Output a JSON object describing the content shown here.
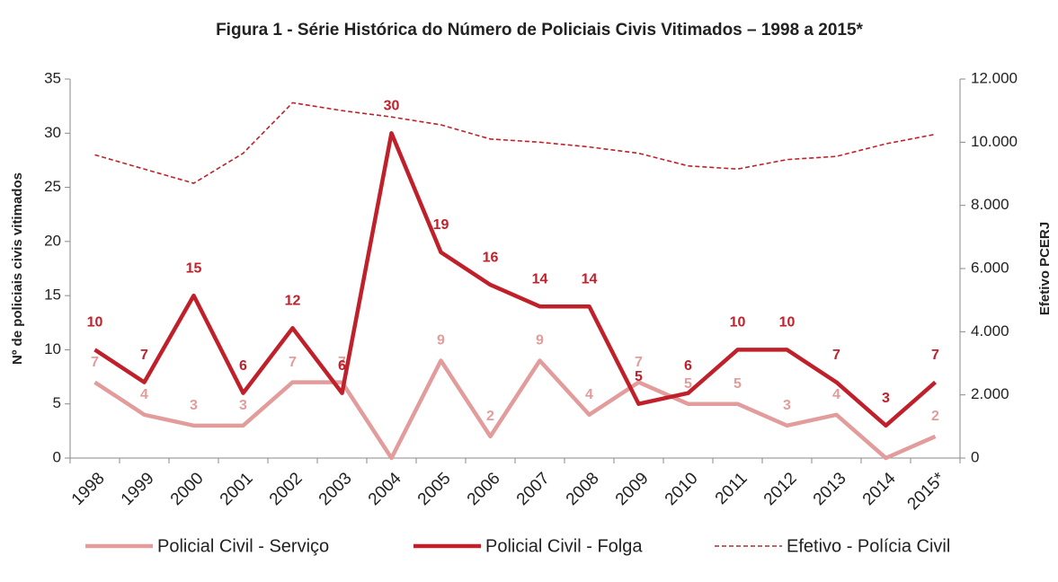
{
  "chart_data": {
    "type": "line",
    "title": "Figura 1 - Série Histórica do Número de Policiais Civis Vitimados – 1998 a 2015*",
    "y_label": "Nº de policiais civis vitimados",
    "y2_label": "Efetivo PCERJ",
    "categories": [
      "1998",
      "1999",
      "2000",
      "2001",
      "2002",
      "2003",
      "2004",
      "2005",
      "2006",
      "2007",
      "2008",
      "2009",
      "2010",
      "2011",
      "2012",
      "2013",
      "2014",
      "2015*"
    ],
    "series": [
      {
        "name": "Policial Civil - Serviço",
        "color": "#e39c9c",
        "style": "solid",
        "values": [
          7,
          4,
          3,
          3,
          7,
          7,
          0,
          9,
          2,
          9,
          4,
          7,
          5,
          5,
          3,
          4,
          0,
          2
        ],
        "value_labels": [
          "7",
          "4",
          "3",
          "3",
          "7",
          "7",
          null,
          "9",
          "2",
          "9",
          "4",
          "7",
          "5",
          "5",
          "3",
          "4",
          null,
          "2"
        ]
      },
      {
        "name": "Policial Civil - Folga",
        "color": "#c0202a",
        "style": "solid",
        "values": [
          10,
          7,
          15,
          6,
          12,
          6,
          30,
          19,
          16,
          14,
          14,
          5,
          6,
          10,
          10,
          7,
          3,
          7
        ]
      },
      {
        "name": "Efetivo - Polícia Civil",
        "color": "#c0202a",
        "style": "dashed",
        "axis": "y2",
        "values": [
          9600,
          9150,
          8700,
          9650,
          11250,
          11000,
          10800,
          10550,
          10100,
          10000,
          9850,
          9650,
          9250,
          9150,
          9450,
          9550,
          9950,
          10250
        ]
      }
    ],
    "ylim": [
      0,
      35
    ],
    "yticks": [
      0,
      5,
      10,
      15,
      20,
      25,
      30,
      35
    ],
    "y2lim": [
      0,
      12000
    ],
    "y2ticks": [
      0,
      {
        "value": 2000,
        "label": "2.000"
      },
      {
        "value": 4000,
        "label": "4.000"
      },
      {
        "value": 6000,
        "label": "6.000"
      },
      {
        "value": 8000,
        "label": "8.000"
      },
      {
        "value": 10000,
        "label": "10.000"
      },
      {
        "value": 12000,
        "label": "12.000"
      }
    ],
    "legend": "bottom"
  }
}
